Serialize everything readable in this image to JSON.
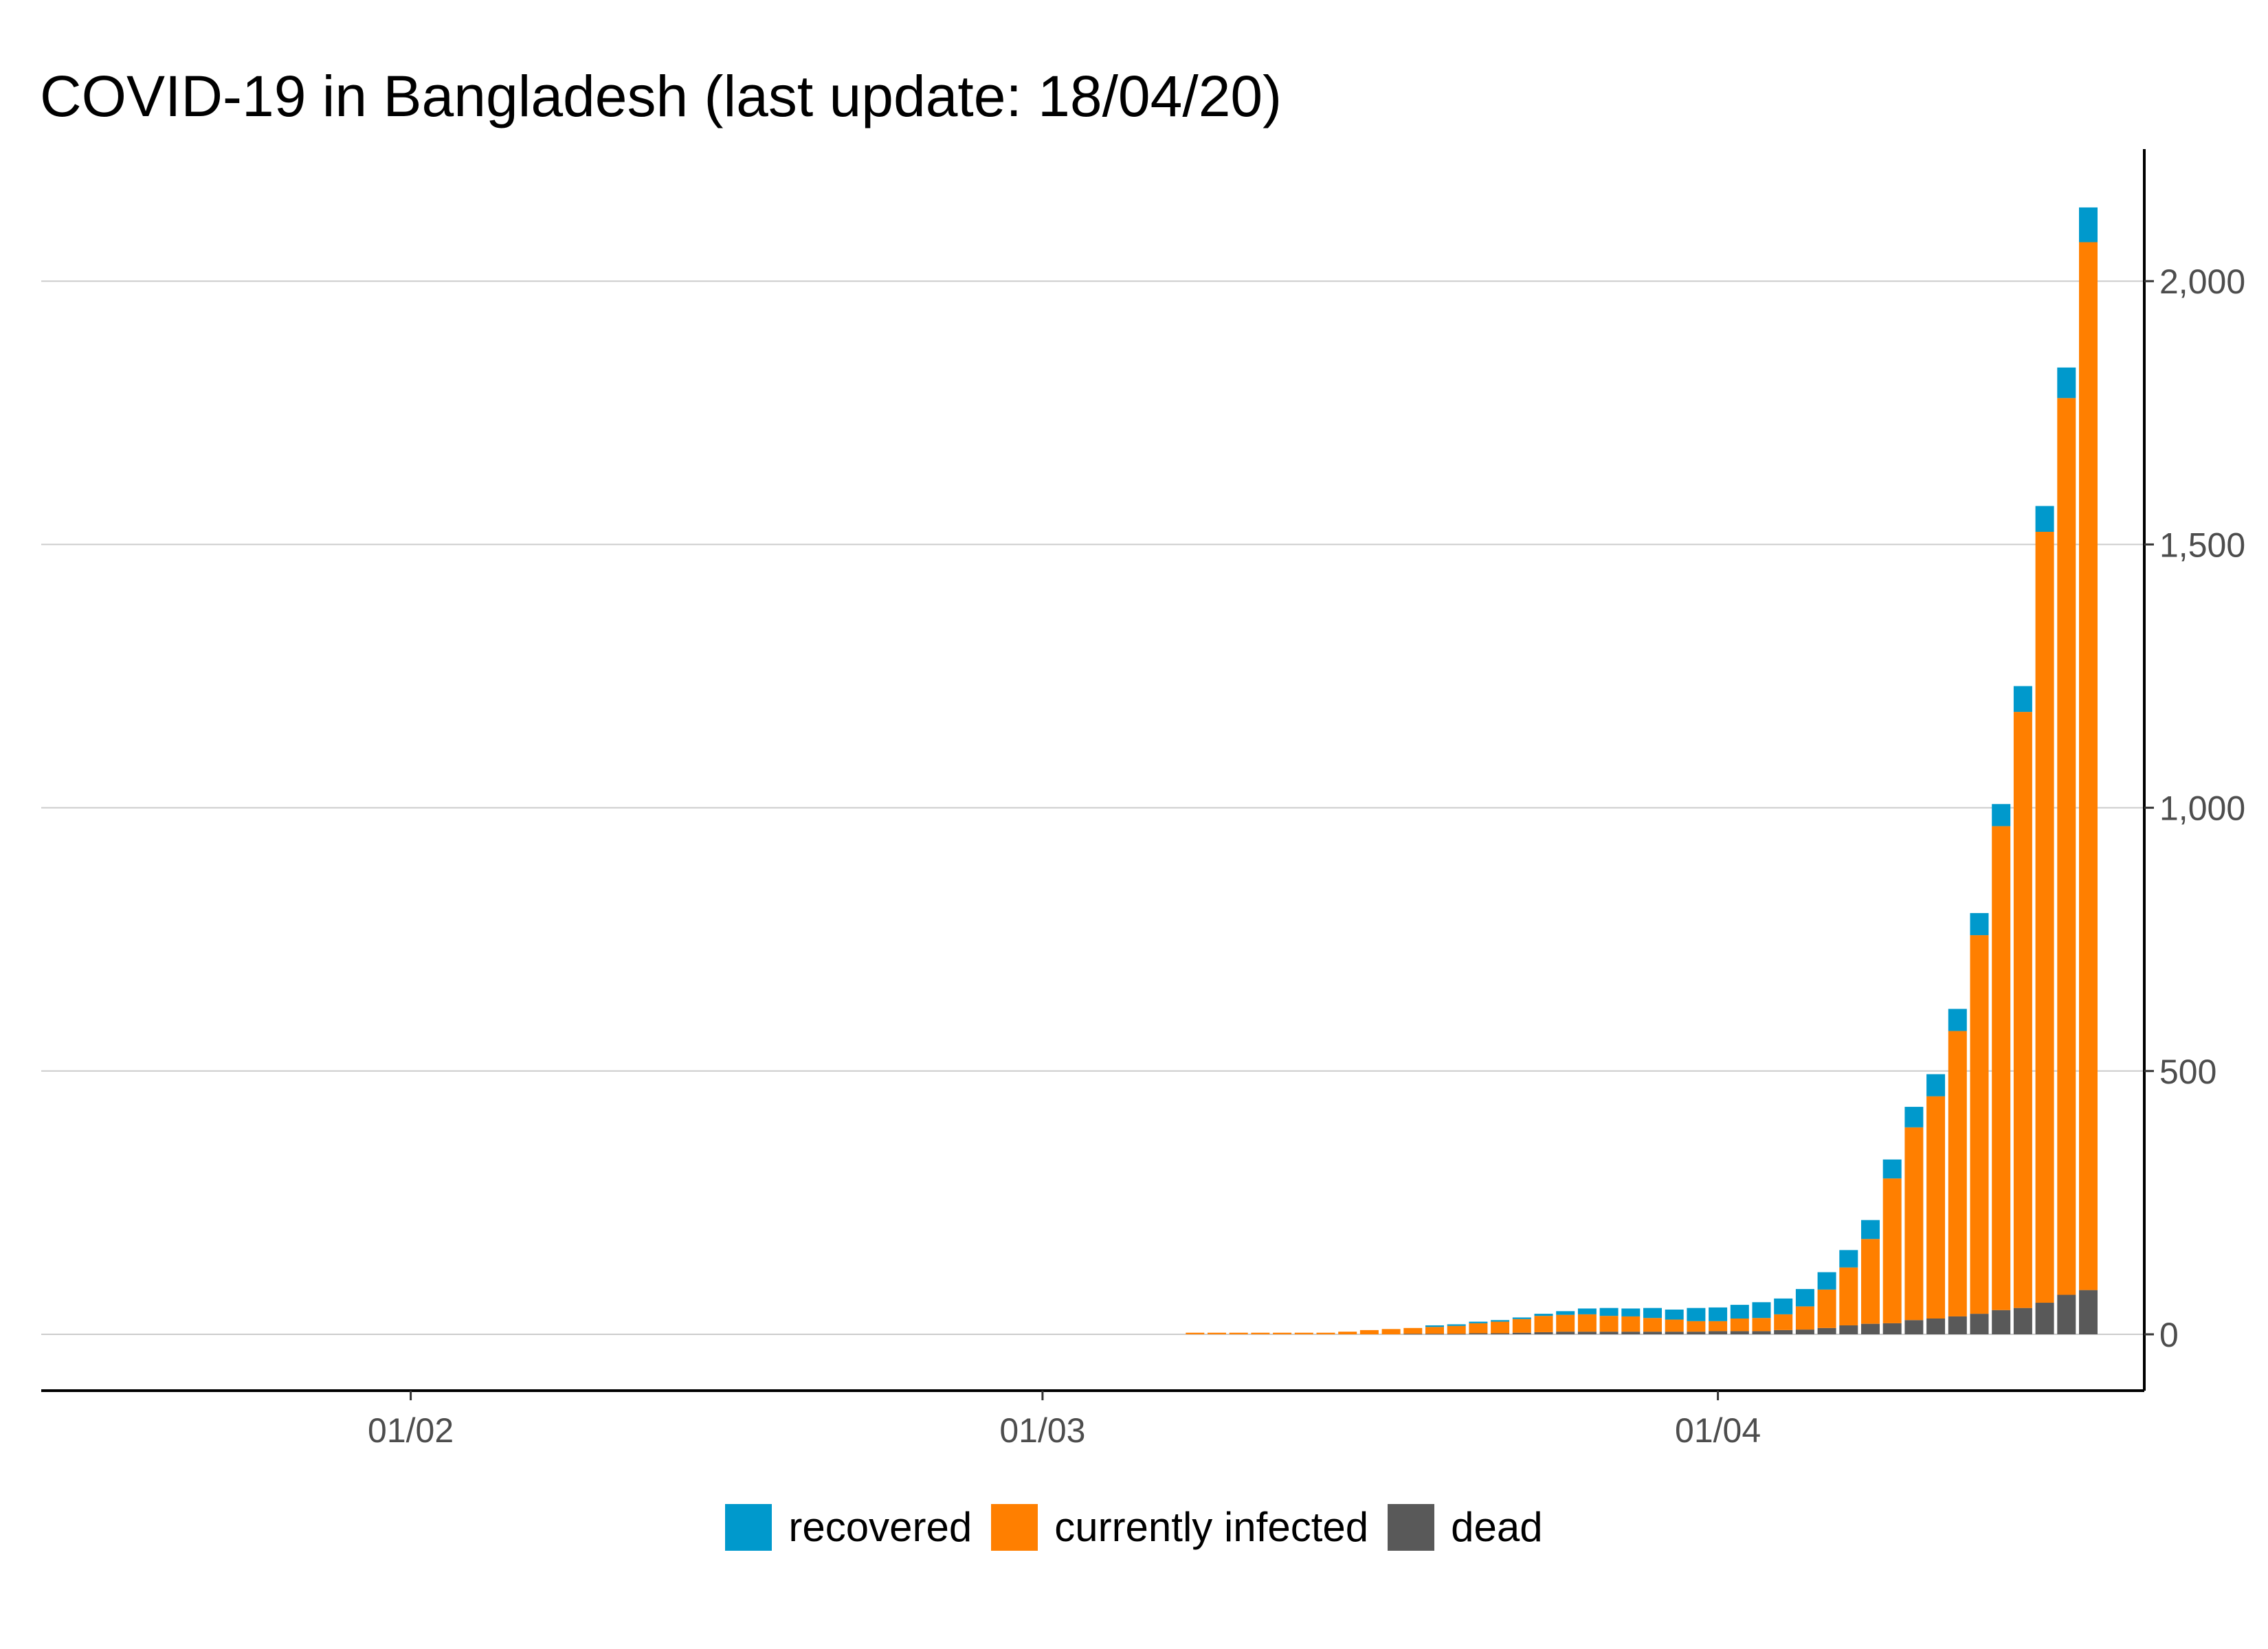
{
  "chart_data": {
    "type": "bar",
    "stacked": true,
    "title": "COVID-19 in Bangladesh (last update: 18/04/20)",
    "xlabel": "",
    "ylabel": "",
    "x_ticks": [
      "01/02",
      "01/03",
      "01/04"
    ],
    "y_ticks": [
      "0",
      "500",
      "1,000",
      "1,500",
      "2,000"
    ],
    "y_tick_values": [
      0,
      500,
      1000,
      1500,
      2000
    ],
    "ylim": [
      -100,
      2250
    ],
    "xlim": [
      "2020-01-22",
      "2020-04-23"
    ],
    "y_axis_position": "right",
    "grid": "horizontal",
    "legend_position": "bottom",
    "dates": [
      "2020-03-08",
      "2020-03-09",
      "2020-03-10",
      "2020-03-11",
      "2020-03-12",
      "2020-03-13",
      "2020-03-14",
      "2020-03-15",
      "2020-03-16",
      "2020-03-17",
      "2020-03-18",
      "2020-03-19",
      "2020-03-20",
      "2020-03-21",
      "2020-03-22",
      "2020-03-23",
      "2020-03-24",
      "2020-03-25",
      "2020-03-26",
      "2020-03-27",
      "2020-03-28",
      "2020-03-29",
      "2020-03-30",
      "2020-03-31",
      "2020-04-01",
      "2020-04-02",
      "2020-04-03",
      "2020-04-04",
      "2020-04-05",
      "2020-04-06",
      "2020-04-07",
      "2020-04-08",
      "2020-04-09",
      "2020-04-10",
      "2020-04-11",
      "2020-04-12",
      "2020-04-13",
      "2020-04-14",
      "2020-04-15",
      "2020-04-16",
      "2020-04-17",
      "2020-04-18"
    ],
    "series": [
      {
        "name": "dead",
        "color": "#595959",
        "values": [
          0,
          0,
          0,
          0,
          0,
          0,
          0,
          0,
          0,
          0,
          1,
          1,
          1,
          2,
          2,
          3,
          4,
          5,
          5,
          5,
          5,
          5,
          5,
          5,
          6,
          6,
          6,
          8,
          9,
          12,
          17,
          20,
          21,
          27,
          30,
          34,
          39,
          46,
          50,
          60,
          75,
          84
        ]
      },
      {
        "name": "currently infected",
        "color": "#ff7f00",
        "values": [
          3,
          3,
          3,
          3,
          3,
          3,
          3,
          5,
          8,
          10,
          11,
          13,
          15,
          19,
          22,
          26,
          31,
          32,
          33,
          30,
          29,
          26,
          23,
          20,
          19,
          24,
          25,
          30,
          44,
          73,
          110,
          161,
          275,
          366,
          422,
          542,
          719,
          919,
          1132,
          1464,
          1703,
          1990
        ]
      },
      {
        "name": "recovered",
        "color": "#0099cc",
        "values": [
          0,
          0,
          0,
          0,
          0,
          0,
          0,
          0,
          0,
          0,
          0,
          3,
          3,
          3,
          3,
          3,
          4,
          7,
          11,
          15,
          15,
          19,
          19,
          25,
          26,
          26,
          30,
          30,
          33,
          33,
          33,
          36,
          36,
          39,
          42,
          42,
          42,
          42,
          49,
          49,
          58,
          66
        ]
      }
    ]
  },
  "legend": {
    "items": [
      {
        "label": "recovered",
        "color": "#0099cc"
      },
      {
        "label": "currently infected",
        "color": "#ff7f00"
      },
      {
        "label": "dead",
        "color": "#595959"
      }
    ]
  }
}
